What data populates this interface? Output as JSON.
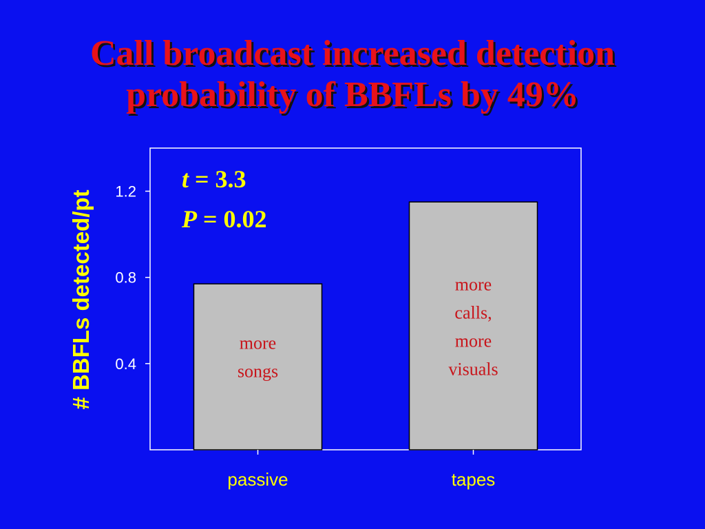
{
  "title": {
    "line1": "Call broadcast increased detection",
    "line2": "probability of BBFLs by 49%"
  },
  "colors": {
    "background": "#0a10f0",
    "title": "#e8121a",
    "axis_text": "#ffff00",
    "tick_text": "#ffffff",
    "bar_fill": "#c0c0c0",
    "annotation": "#c8141a"
  },
  "stats": {
    "t_symbol": "t",
    "t_rest": " = 3.3",
    "p_symbol": "P",
    "p_rest": " = 0.02"
  },
  "chart_data": {
    "type": "bar",
    "categories": [
      "passive",
      "tapes"
    ],
    "values": [
      0.77,
      1.15
    ],
    "ylabel": "# BBFLs detected/pt",
    "xlabel": "",
    "ylim": [
      0,
      1.4
    ],
    "yticks": [
      0.4,
      0.8,
      1.2
    ],
    "ytick_labels": [
      "0.4",
      "0.8",
      "1.2"
    ],
    "bar_annotations": [
      [
        "more",
        "songs"
      ],
      [
        "more",
        "calls,",
        "more",
        "visuals"
      ]
    ],
    "grid": false
  }
}
